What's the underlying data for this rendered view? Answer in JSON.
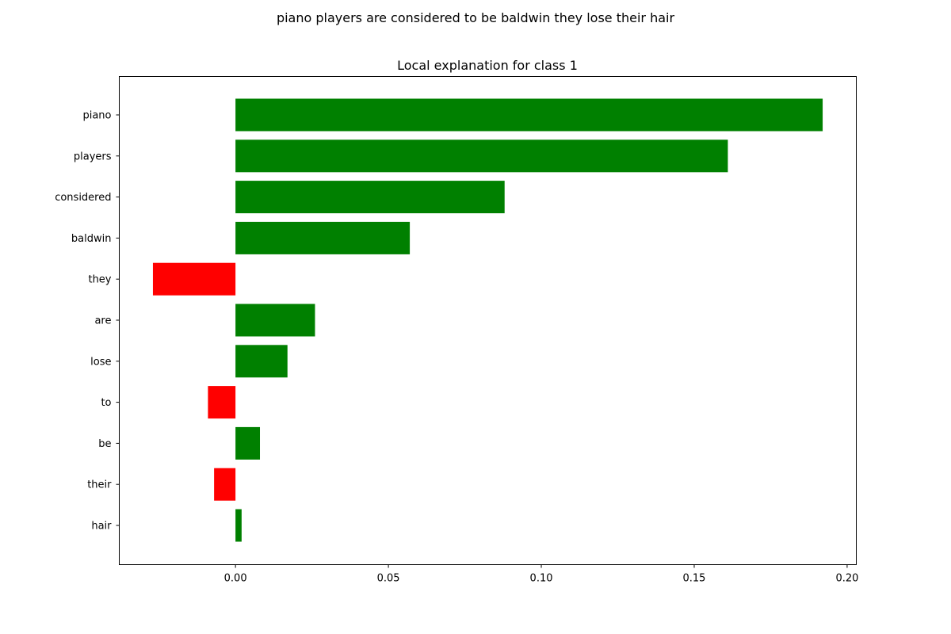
{
  "figure": {
    "suptitle": "piano players are considered to be baldwin they lose their hair"
  },
  "chart_data": {
    "type": "bar",
    "orientation": "horizontal",
    "title": "Local explanation for class 1",
    "xlabel": "",
    "ylabel": "",
    "categories": [
      "piano",
      "players",
      "considered",
      "baldwin",
      "they",
      "are",
      "lose",
      "to",
      "be",
      "their",
      "hair"
    ],
    "values": [
      0.192,
      0.161,
      0.088,
      0.057,
      -0.027,
      0.026,
      0.017,
      -0.009,
      0.008,
      -0.007,
      0.002
    ],
    "xlim": [
      -0.038,
      0.203
    ],
    "xticks": [
      0.0,
      0.05,
      0.1,
      0.15,
      0.2
    ],
    "xtick_labels": [
      "0.00",
      "0.05",
      "0.10",
      "0.15",
      "0.20"
    ],
    "grid": false,
    "legend": "none",
    "colors": {
      "positive": "#008000",
      "negative": "#ff0000",
      "axis": "#000000"
    }
  }
}
